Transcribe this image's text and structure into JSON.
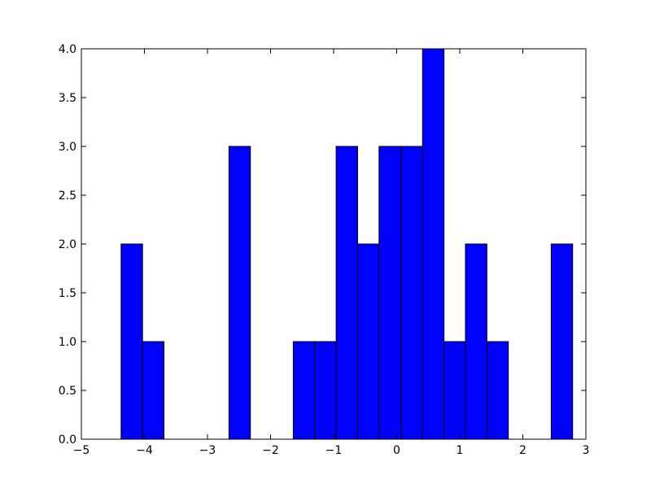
{
  "chart_data": {
    "type": "histogram",
    "bins": [
      -4.37,
      -4.03,
      -3.69,
      -3.35,
      -3.0,
      -2.66,
      -2.32,
      -1.98,
      -1.64,
      -1.3,
      -0.96,
      -0.62,
      -0.28,
      0.07,
      0.41,
      0.75,
      1.09,
      1.43,
      1.77,
      2.11,
      2.45,
      2.79
    ],
    "values": [
      2,
      1,
      0,
      0,
      0,
      3,
      0,
      0,
      1,
      1,
      3,
      2,
      3,
      3,
      4,
      1,
      2,
      1,
      0,
      0,
      2
    ],
    "color": "#0000ff",
    "xlim": [
      -5,
      3
    ],
    "xticks": [
      {
        "value": -5,
        "label": "−5"
      },
      {
        "value": -4,
        "label": "−4"
      },
      {
        "value": -3,
        "label": "−3"
      },
      {
        "value": -2,
        "label": "−2"
      },
      {
        "value": -1,
        "label": "−1"
      },
      0,
      1,
      2,
      3
    ],
    "ylim": [
      0,
      4
    ],
    "yticks": [
      {
        "value": 0,
        "label": "0.0"
      },
      {
        "value": 0.5,
        "label": "0.5"
      },
      {
        "value": 1,
        "label": "1.0"
      },
      {
        "value": 1.5,
        "label": "1.5"
      },
      {
        "value": 2,
        "label": "2.0"
      },
      {
        "value": 2.5,
        "label": "2.5"
      },
      {
        "value": 3,
        "label": "3.0"
      },
      {
        "value": 3.5,
        "label": "3.5"
      },
      {
        "value": 4,
        "label": "4.0"
      }
    ],
    "grid": false
  }
}
